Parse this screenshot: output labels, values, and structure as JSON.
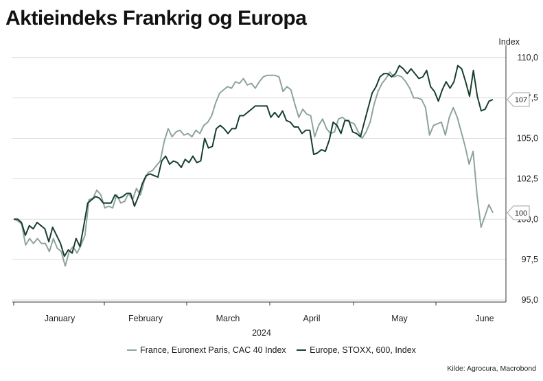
{
  "chart_data": {
    "type": "line",
    "title": "Aktieindeks Frankrig og Europa",
    "ylabel": "Index",
    "xlabel": "2024",
    "ylim": [
      95,
      110.5
    ],
    "yticks": [
      95.0,
      97.5,
      100.0,
      102.5,
      105.0,
      107.5,
      110.0
    ],
    "ytick_labels": [
      "95,0",
      "97,5",
      "100,0",
      "102,5",
      "105,0",
      "107,5",
      "110,0"
    ],
    "month_labels": [
      "January",
      "February",
      "March",
      "April",
      "May",
      "June"
    ],
    "grid": true,
    "legend_position": "bottom",
    "end_labels": [
      "107",
      "100"
    ],
    "colors": {
      "france": "#8ea3a0",
      "europe": "#173f2d",
      "grid": "#d9d9d9"
    },
    "series": [
      {
        "name": "France, Euronext Paris, CAC 40 Index",
        "color": "#8ea3a0",
        "values": [
          100.0,
          99.9,
          99.7,
          98.4,
          98.8,
          98.5,
          98.8,
          98.5,
          98.5,
          98.0,
          98.8,
          98.2,
          98.0,
          97.1,
          98.0,
          98.3,
          97.9,
          98.4,
          99.0,
          101.2,
          101.3,
          101.8,
          101.5,
          100.7,
          100.8,
          100.7,
          101.5,
          101.0,
          101.1,
          101.6,
          101.2,
          101.9,
          101.5,
          102.4,
          102.9,
          103.0,
          103.3,
          103.6,
          104.8,
          105.6,
          105.1,
          105.4,
          105.5,
          105.2,
          105.3,
          105.1,
          105.5,
          105.3,
          105.8,
          106.0,
          106.4,
          107.2,
          107.8,
          108.0,
          108.2,
          108.1,
          108.5,
          108.4,
          108.7,
          108.3,
          108.4,
          108.1,
          108.5,
          108.8,
          108.9,
          108.9,
          108.9,
          108.8,
          107.9,
          108.2,
          108.0,
          107.1,
          106.3,
          106.8,
          106.5,
          106.4,
          105.1,
          105.8,
          106.2,
          105.6,
          105.3,
          105.4,
          106.2,
          106.3,
          106.1,
          106.0,
          105.9,
          105.4,
          105.0,
          105.4,
          106.0,
          107.1,
          107.9,
          108.4,
          108.7,
          109.1,
          108.8,
          108.9,
          108.8,
          108.5,
          108.1,
          107.5,
          107.5,
          107.4,
          106.9,
          105.2,
          105.8,
          105.9,
          106.0,
          105.2,
          106.3,
          106.9,
          106.3,
          105.4,
          104.5,
          103.4,
          104.2,
          101.5,
          99.5,
          100.2,
          100.9,
          100.4
        ]
      },
      {
        "name": "Europe, STOXX, 600, Index",
        "color": "#173f2d",
        "values": [
          100.0,
          100.0,
          99.8,
          99.0,
          99.6,
          99.4,
          99.8,
          99.6,
          99.4,
          98.6,
          99.5,
          99.0,
          98.5,
          97.7,
          98.1,
          97.9,
          98.8,
          98.3,
          99.6,
          101.0,
          101.2,
          101.4,
          101.3,
          101.0,
          101.0,
          101.0,
          101.5,
          101.3,
          101.4,
          101.6,
          101.6,
          100.8,
          101.4,
          102.2,
          102.7,
          102.8,
          102.7,
          102.6,
          103.6,
          103.9,
          103.4,
          103.6,
          103.5,
          103.2,
          103.7,
          103.5,
          103.9,
          103.5,
          103.6,
          105.0,
          104.4,
          104.5,
          105.6,
          105.8,
          105.6,
          105.3,
          105.6,
          105.6,
          106.4,
          106.4,
          106.6,
          106.8,
          107.0,
          107.0,
          107.0,
          107.0,
          106.3,
          106.6,
          106.3,
          106.7,
          106.1,
          106.0,
          105.7,
          105.7,
          105.3,
          105.5,
          105.5,
          104.0,
          104.1,
          104.3,
          104.2,
          104.9,
          106.0,
          105.8,
          105.3,
          106.1,
          106.1,
          105.4,
          105.3,
          105.1,
          106.0,
          106.9,
          107.8,
          108.2,
          108.8,
          109.0,
          109.0,
          108.8,
          109.0,
          109.5,
          109.3,
          109.0,
          109.3,
          109.0,
          108.7,
          108.8,
          109.2,
          108.2,
          107.9,
          107.3,
          108.0,
          108.5,
          108.1,
          108.5,
          109.5,
          109.3,
          108.5,
          107.6,
          109.2,
          107.6,
          106.7,
          106.8,
          107.3,
          107.4
        ]
      }
    ]
  },
  "source": "Kilde: Agrocura, Macrobond"
}
